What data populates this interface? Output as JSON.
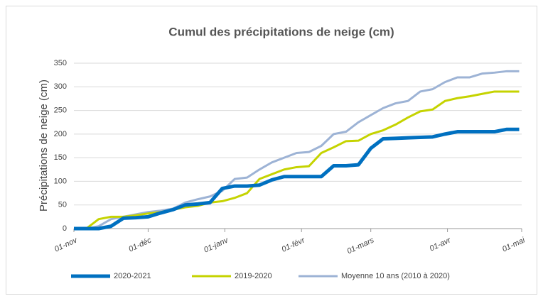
{
  "chart_data": {
    "type": "line",
    "title": "Cumul des précipitations de neige (cm)",
    "y_label": "Précipitations de neige (cm)",
    "x": [
      0,
      5,
      10,
      15,
      20,
      25,
      30,
      35,
      40,
      45,
      50,
      55,
      60,
      65,
      70,
      75,
      80,
      85,
      90,
      95,
      100,
      105,
      110,
      115,
      120,
      125,
      130,
      135,
      140,
      145,
      150,
      155,
      160,
      165,
      170,
      175,
      180
    ],
    "xlim": [
      0,
      181
    ],
    "xticks": [
      {
        "value": 0,
        "label": "01-nov"
      },
      {
        "value": 30,
        "label": "01-déc"
      },
      {
        "value": 61,
        "label": "01-janv"
      },
      {
        "value": 92,
        "label": "01-févr"
      },
      {
        "value": 120,
        "label": "01-mars"
      },
      {
        "value": 151,
        "label": "01-avr"
      },
      {
        "value": 181,
        "label": "01-mai"
      }
    ],
    "ylim": [
      0,
      350
    ],
    "yticks": [
      0,
      50,
      100,
      150,
      200,
      250,
      300,
      350
    ],
    "grid": true,
    "legend": "bottom",
    "series": [
      {
        "name": "2020-2021",
        "color": "#0070c0",
        "values": [
          0,
          0,
          0,
          5,
          22,
          23,
          25,
          33,
          40,
          50,
          52,
          55,
          85,
          90,
          90,
          92,
          103,
          110,
          110,
          110,
          110,
          133,
          133,
          135,
          170,
          190,
          191,
          192,
          193,
          194,
          200,
          205,
          205,
          205,
          205,
          210,
          210
        ]
      },
      {
        "name": "2019-2020",
        "color": "#c5d300",
        "values": [
          0,
          0,
          20,
          25,
          25,
          28,
          32,
          35,
          40,
          45,
          48,
          55,
          58,
          65,
          75,
          105,
          115,
          125,
          130,
          132,
          160,
          172,
          185,
          186,
          200,
          208,
          220,
          235,
          248,
          252,
          270,
          276,
          280,
          285,
          290,
          290,
          290
        ]
      },
      {
        "name": "Moyenne 10 ans (2010 à 2020)",
        "color": "#9db3d5",
        "values": [
          0,
          0,
          5,
          20,
          25,
          30,
          35,
          38,
          42,
          55,
          62,
          68,
          80,
          105,
          108,
          125,
          140,
          150,
          160,
          162,
          175,
          200,
          205,
          225,
          240,
          255,
          265,
          270,
          290,
          295,
          310,
          320,
          320,
          328,
          330,
          333,
          333
        ]
      }
    ]
  }
}
